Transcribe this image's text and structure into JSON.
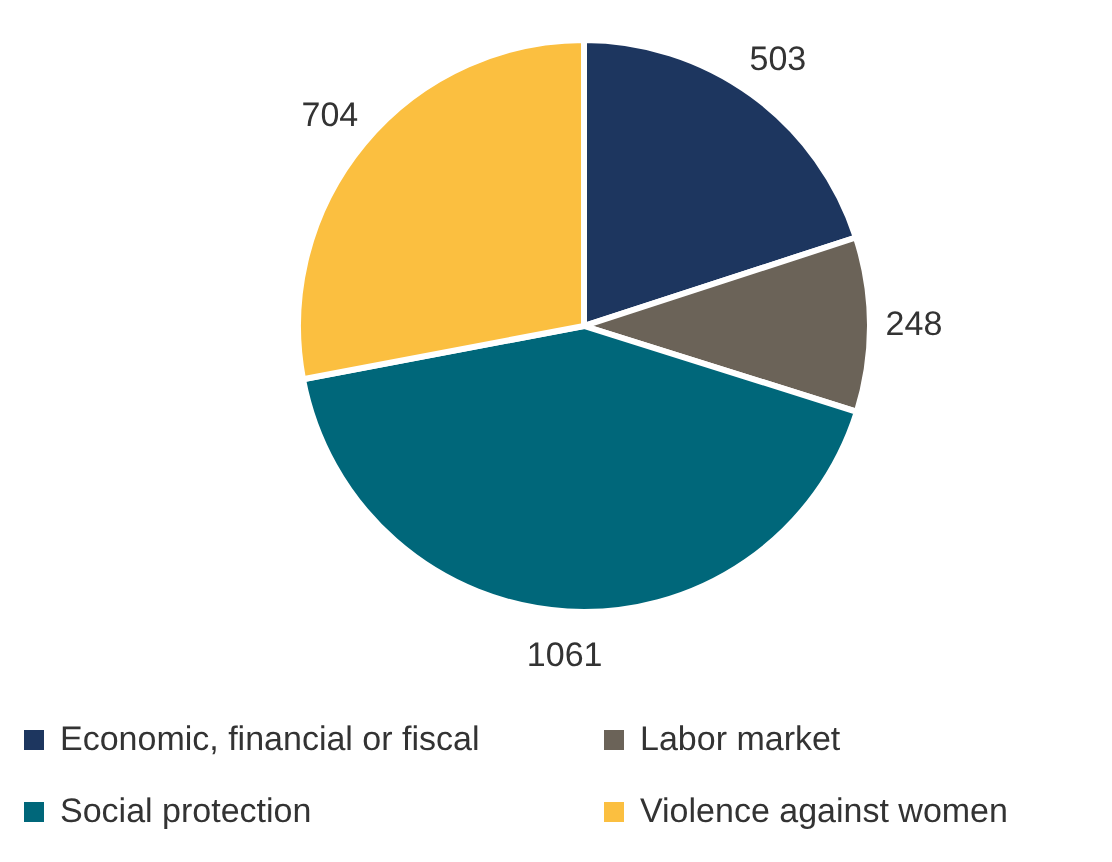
{
  "chart_data": {
    "type": "pie",
    "categories": [
      "Economic, financial or fiscal",
      "Labor market",
      "Social protection",
      "Violence against women"
    ],
    "values": [
      503,
      248,
      1061,
      704
    ],
    "colors": [
      "#1d365f",
      "#6b6358",
      "#00677a",
      "#fbbf40"
    ],
    "data_labels": true,
    "legend": "bottom"
  }
}
